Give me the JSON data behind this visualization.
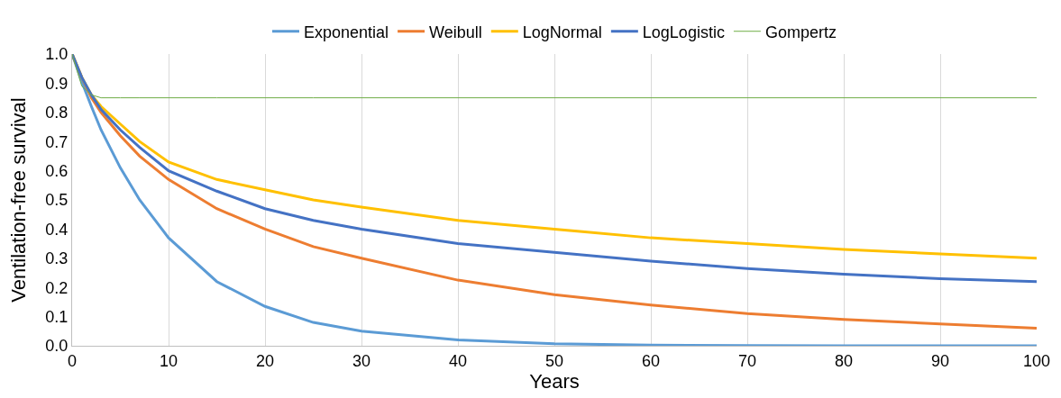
{
  "chart_data": {
    "type": "line",
    "xlabel": "Years",
    "ylabel": "Ventilation-free survival",
    "x": [
      0,
      1,
      2,
      3,
      5,
      7,
      10,
      15,
      20,
      25,
      30,
      40,
      50,
      60,
      70,
      80,
      90,
      100
    ],
    "series": [
      {
        "name": "Exponential",
        "color": "#5b9bd5",
        "values": [
          1,
          0.905,
          0.82,
          0.74,
          0.61,
          0.5,
          0.37,
          0.22,
          0.135,
          0.08,
          0.05,
          0.02,
          0.007,
          0.002,
          0.001,
          0,
          0,
          0
        ]
      },
      {
        "name": "Weibull",
        "color": "#ed7d31",
        "values": [
          1,
          0.92,
          0.85,
          0.8,
          0.72,
          0.65,
          0.57,
          0.47,
          0.4,
          0.34,
          0.3,
          0.225,
          0.175,
          0.14,
          0.11,
          0.09,
          0.075,
          0.06
        ]
      },
      {
        "name": "LogNormal",
        "color": "#ffc000",
        "values": [
          1,
          0.92,
          0.86,
          0.82,
          0.76,
          0.7,
          0.63,
          0.57,
          0.535,
          0.5,
          0.475,
          0.43,
          0.4,
          0.37,
          0.35,
          0.33,
          0.315,
          0.3
        ]
      },
      {
        "name": "LogLogistic",
        "color": "#4472c4",
        "values": [
          1,
          0.92,
          0.86,
          0.81,
          0.74,
          0.68,
          0.6,
          0.53,
          0.47,
          0.43,
          0.4,
          0.35,
          0.32,
          0.29,
          0.265,
          0.245,
          0.23,
          0.22
        ]
      },
      {
        "name": "Gompertz",
        "color": "#70ad47",
        "values": [
          1,
          0.89,
          0.86,
          0.85,
          0.85,
          0.85,
          0.85,
          0.85,
          0.85,
          0.85,
          0.85,
          0.85,
          0.85,
          0.85,
          0.85,
          0.85,
          0.85,
          0.85
        ]
      }
    ],
    "xlim": [
      0,
      100
    ],
    "xticks": [
      0,
      10,
      20,
      30,
      40,
      50,
      60,
      70,
      80,
      90,
      100
    ],
    "ylim": [
      0,
      1
    ],
    "yticks": [
      {
        "value": 0,
        "label": "0.0"
      },
      {
        "value": 0.1,
        "label": "0.1"
      },
      {
        "value": 0.2,
        "label": "0.2"
      },
      {
        "value": 0.3,
        "label": "0.3"
      },
      {
        "value": 0.4,
        "label": "0.4"
      },
      {
        "value": 0.5,
        "label": "0.5"
      },
      {
        "value": 0.6,
        "label": "0.6"
      },
      {
        "value": 0.7,
        "label": "0.7"
      },
      {
        "value": 0.8,
        "label": "0.8"
      },
      {
        "value": 0.9,
        "label": "0.9"
      },
      {
        "value": 1,
        "label": "1.0"
      }
    ],
    "grid": "x",
    "legend": "top",
    "marker": "none",
    "line_style": "solid"
  }
}
